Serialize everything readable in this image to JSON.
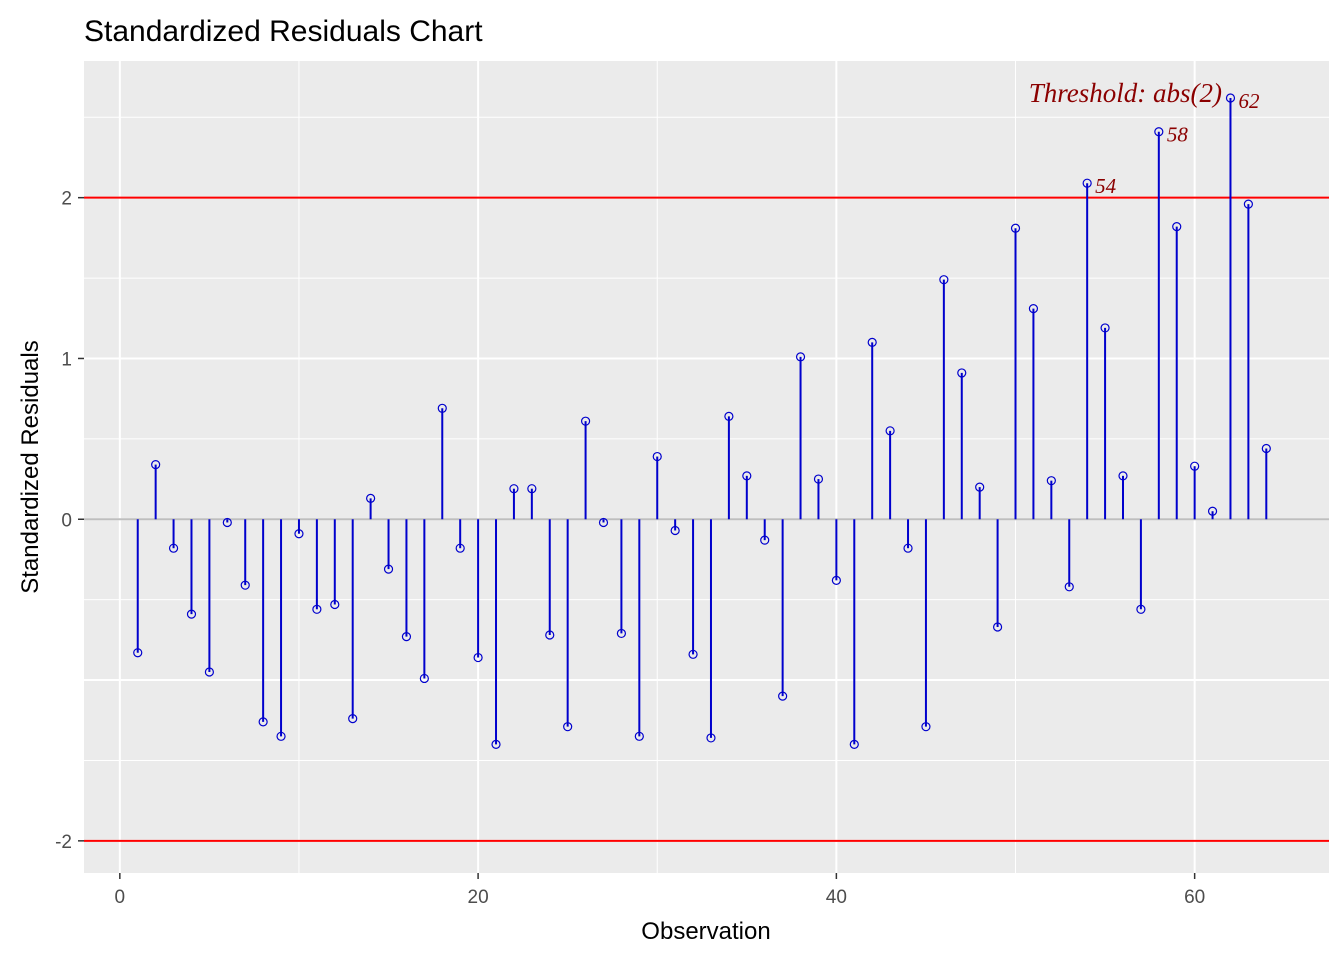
{
  "chart_data": {
    "type": "scatter",
    "subtype": "lollipop",
    "title": "Standardized Residuals Chart",
    "xlabel": "Observation",
    "ylabel": "Standardized Residuals",
    "xlim": [
      -2,
      67.5
    ],
    "ylim": [
      -2.2,
      2.85
    ],
    "x_ticks": [
      0,
      20,
      40,
      60
    ],
    "x_tick_labels": [
      "0",
      "20",
      "40",
      "60"
    ],
    "y_ticks": [
      -2,
      0,
      1,
      2
    ],
    "y_tick_labels": [
      "-2",
      "0",
      "1",
      "2"
    ],
    "grid": true,
    "legend": "none",
    "threshold": {
      "label": "Threshold: abs(2)",
      "values": [
        2,
        -2
      ],
      "color": "#ff0000"
    },
    "zero_line_color": "#bebebe",
    "series": [
      {
        "color": "#0000cd",
        "x": [
          1,
          2,
          3,
          4,
          5,
          6,
          7,
          8,
          9,
          10,
          11,
          12,
          13,
          14,
          15,
          16,
          17,
          18,
          19,
          20,
          21,
          22,
          23,
          24,
          25,
          26,
          27,
          28,
          29,
          30,
          31,
          32,
          33,
          34,
          35,
          36,
          37,
          38,
          39,
          40,
          41,
          42,
          43,
          44,
          45,
          46,
          47,
          48,
          49,
          50,
          51,
          52,
          53,
          54,
          55,
          56,
          57,
          58,
          59,
          60,
          61,
          62,
          63,
          64
        ],
        "values": [
          -0.83,
          0.34,
          -0.18,
          -0.59,
          -0.95,
          -0.02,
          -0.41,
          -1.26,
          -1.35,
          -0.09,
          -0.56,
          -0.53,
          -1.24,
          0.13,
          -0.31,
          -0.73,
          -0.99,
          0.69,
          -0.18,
          -0.86,
          -1.4,
          0.19,
          0.19,
          -0.72,
          -1.29,
          0.61,
          -0.02,
          -0.71,
          -1.35,
          0.39,
          -0.07,
          -0.84,
          -1.36,
          0.64,
          0.27,
          -0.13,
          -1.1,
          1.01,
          0.25,
          -0.38,
          -1.4,
          1.1,
          0.55,
          -0.18,
          -1.29,
          1.49,
          0.91,
          0.2,
          -0.67,
          1.81,
          1.31,
          0.24,
          -0.42,
          2.09,
          1.19,
          0.27,
          -0.56,
          2.41,
          1.82,
          0.33,
          0.05,
          2.62,
          1.96,
          0.44
        ]
      }
    ],
    "point_labels": [
      {
        "x": 54,
        "y": 2.09,
        "text": "54"
      },
      {
        "x": 58,
        "y": 2.41,
        "text": "58"
      },
      {
        "x": 62,
        "y": 2.62,
        "text": "62"
      }
    ],
    "panel_background": "#ebebeb"
  }
}
